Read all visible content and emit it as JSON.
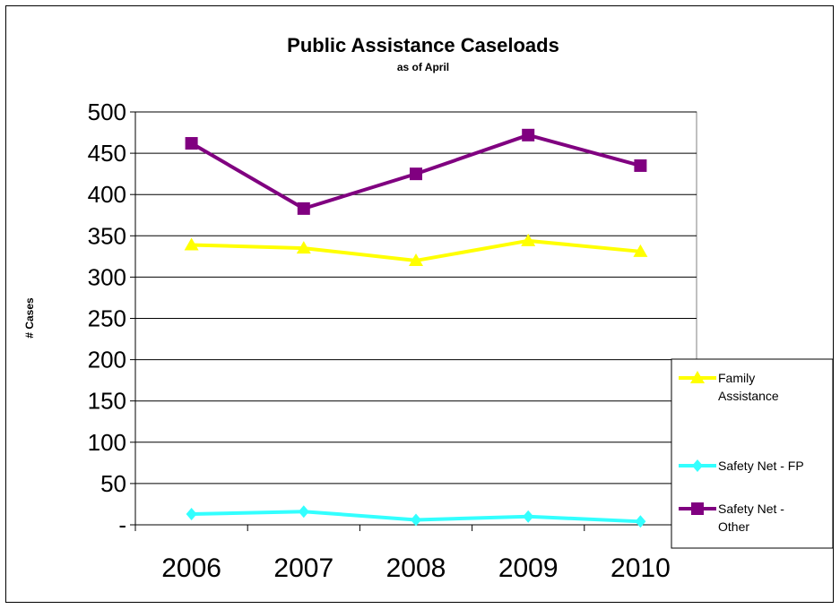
{
  "chart_data": {
    "type": "line",
    "title": "Public Assistance Caseloads",
    "subtitle": "as of April",
    "xlabel": "",
    "ylabel": "# Cases",
    "categories": [
      "2006",
      "2007",
      "2008",
      "2009",
      "2010"
    ],
    "ylim": [
      0,
      500
    ],
    "yticks": [
      0,
      50,
      100,
      150,
      200,
      250,
      300,
      350,
      400,
      450,
      500
    ],
    "ytick_labels": [
      "-",
      "50",
      "100",
      "150",
      "200",
      "250",
      "300",
      "350",
      "400",
      "450",
      "500"
    ],
    "grid": true,
    "legend_position": "right",
    "series": [
      {
        "name": "Family Assistance",
        "name_lines": [
          "Family",
          "Assistance"
        ],
        "values": [
          339,
          335,
          320,
          344,
          331
        ],
        "color": "#FFFF00",
        "marker": "triangle"
      },
      {
        "name": "Safety Net - FP",
        "name_lines": [
          "Safety Net - FP"
        ],
        "values": [
          13,
          16,
          6,
          10,
          4
        ],
        "color": "#33FFFF",
        "marker": "diamond"
      },
      {
        "name": "Safety Net - Other",
        "name_lines": [
          "Safety Net -",
          "Other"
        ],
        "values": [
          462,
          383,
          425,
          472,
          435
        ],
        "color": "#800080",
        "marker": "square"
      }
    ]
  }
}
